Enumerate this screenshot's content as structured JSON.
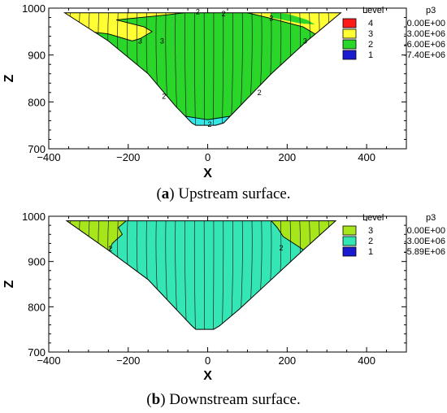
{
  "chart_data": [
    {
      "type": "heatmap",
      "panel": "a",
      "caption_letter": "a",
      "caption_text": "Upstream surface.",
      "xlabel": "X",
      "ylabel": "Z",
      "xlim": [
        -400,
        500
      ],
      "ylim": [
        700,
        1000
      ],
      "xticks": [
        -400,
        -200,
        0,
        200,
        400
      ],
      "yticks": [
        700,
        800,
        900,
        1000
      ],
      "legend": {
        "header_level": "Level",
        "header_var": "p3",
        "placement": "top-right",
        "entries": [
          {
            "level": "4",
            "value": "0.00E+00",
            "color": "#ff1a1a"
          },
          {
            "level": "3",
            "value": "-3.00E+06",
            "color": "#ffff33"
          },
          {
            "level": "2",
            "value": "-6.00E+06",
            "color": "#29d629"
          },
          {
            "level": "1",
            "value": "-7.40E+06",
            "color": "#1a1ad1"
          }
        ]
      },
      "region_colors": {
        "yellow": "#ffff33",
        "green": "#29d629",
        "cyan": "#33e6e6"
      },
      "contour_labels": [
        "2",
        "2",
        "3",
        "3",
        "3",
        "3",
        "2",
        "2",
        "2"
      ]
    },
    {
      "type": "heatmap",
      "panel": "b",
      "caption_letter": "b",
      "caption_text": "Downstream surface.",
      "xlabel": "X",
      "ylabel": "Z",
      "xlim": [
        -400,
        500
      ],
      "ylim": [
        700,
        1000
      ],
      "xticks": [
        -400,
        -200,
        0,
        200,
        400
      ],
      "yticks": [
        700,
        800,
        900,
        1000
      ],
      "legend": {
        "header_level": "Level",
        "header_var": "p3",
        "placement": "top-right",
        "entries": [
          {
            "level": "3",
            "value": "0.00E+00",
            "color": "#a6e61a"
          },
          {
            "level": "2",
            "value": "-3.00E+06",
            "color": "#33e6b3"
          },
          {
            "level": "1",
            "value": "-5.89E+06",
            "color": "#1a1ad1"
          }
        ]
      },
      "region_colors": {
        "lime": "#a6e61a",
        "teal": "#33e6b3"
      },
      "contour_labels": [
        "2",
        "2"
      ]
    }
  ]
}
